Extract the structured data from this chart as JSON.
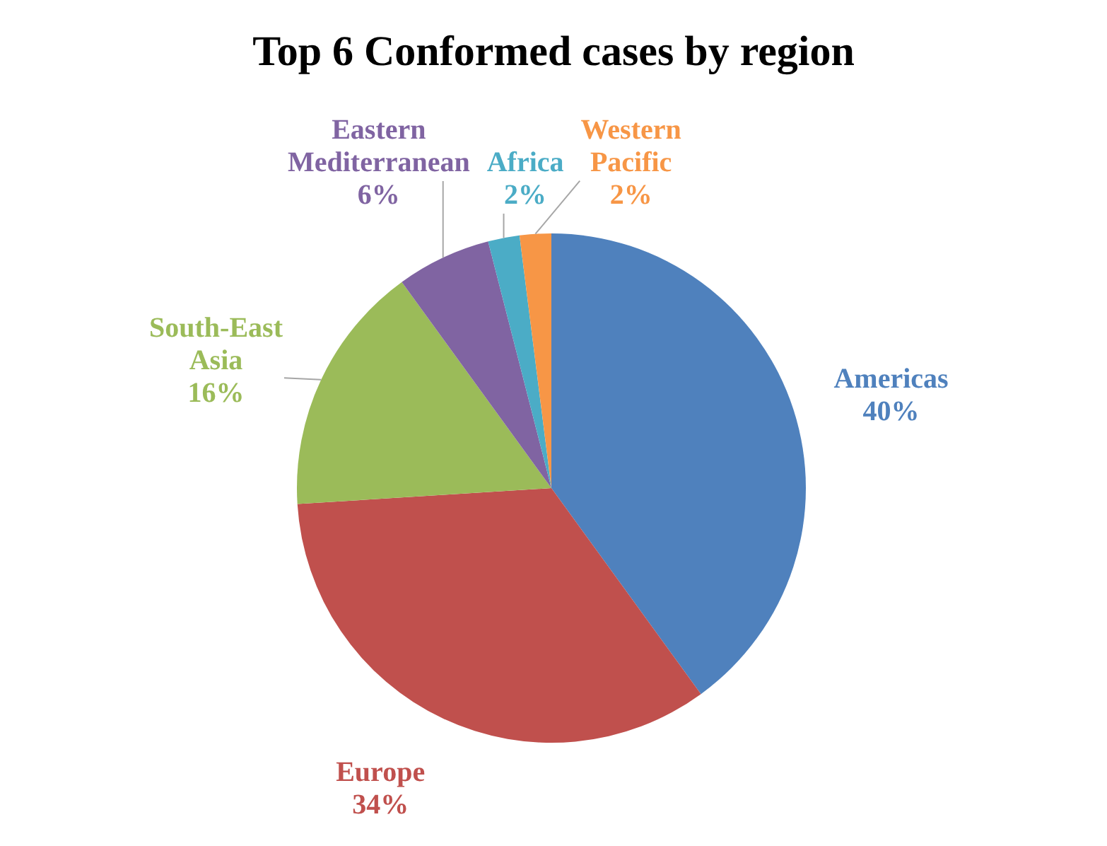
{
  "chart_data": {
    "type": "pie",
    "title": "Top 6 Conformed cases by region",
    "categories": [
      "Americas",
      "Europe",
      "South-East Asia",
      "Eastern Mediterranean",
      "Africa",
      "Western Pacific"
    ],
    "values": [
      40,
      34,
      16,
      6,
      2,
      2
    ],
    "colors": [
      "#4f81bd",
      "#c0504d",
      "#9bbb59",
      "#8064a2",
      "#4bacc6",
      "#f79646"
    ],
    "value_labels": [
      "40%",
      "34%",
      "16%",
      "6%",
      "2%",
      "2%"
    ]
  }
}
